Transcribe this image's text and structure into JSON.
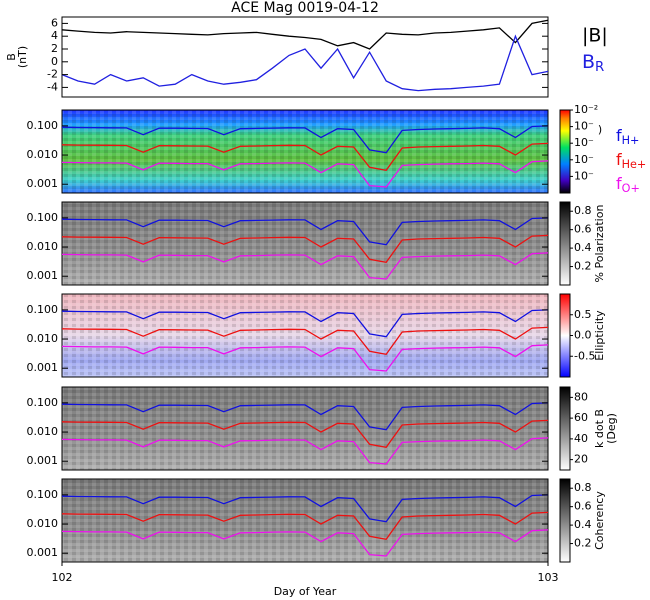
{
  "chart_data": [
    {
      "type": "line",
      "title": "ACE Mag 0019-04-12",
      "ylabel": [
        "B",
        "(nT)"
      ],
      "ylim": [
        -5.5,
        7
      ],
      "yticks": [
        -4,
        -2,
        0,
        2,
        4,
        6
      ],
      "xlim": [
        102,
        103
      ],
      "x": [
        102.0,
        102.033,
        102.067,
        102.1,
        102.133,
        102.167,
        102.2,
        102.233,
        102.267,
        102.3,
        102.333,
        102.367,
        102.4,
        102.433,
        102.467,
        102.5,
        102.533,
        102.567,
        102.6,
        102.633,
        102.667,
        102.7,
        102.733,
        102.767,
        102.8,
        102.833,
        102.867,
        102.9,
        102.933,
        102.967,
        103.0
      ],
      "series": [
        {
          "name": "|B|",
          "color": "#000000",
          "values": [
            5,
            4.8,
            4.6,
            4.5,
            4.7,
            4.6,
            4.5,
            4.4,
            4.3,
            4.2,
            4.4,
            4.5,
            4.6,
            4.3,
            4.0,
            3.8,
            3.5,
            2.5,
            3.0,
            2.0,
            4.5,
            4.3,
            4.2,
            4.5,
            4.6,
            4.8,
            5.0,
            5.3,
            3.0,
            6.0,
            6.5
          ]
        },
        {
          "name": "BR",
          "color": "#2020e0",
          "values": [
            -2,
            -3,
            -3.5,
            -2,
            -3,
            -2.5,
            -3.8,
            -3.5,
            -2,
            -3,
            -3.5,
            -3.2,
            -2.8,
            -1,
            1,
            2,
            -1,
            2,
            -2.5,
            1.5,
            -3,
            -4.2,
            -4.5,
            -4.3,
            -4.2,
            -4.0,
            -3.8,
            -3.5,
            4,
            -2,
            -1.5
          ]
        }
      ]
    },
    {
      "type": "spectrogram",
      "log_y": true,
      "ylim": [
        0.0005,
        0.35
      ],
      "yticks": [
        {
          "value": 0.1,
          "label": "0.100"
        },
        {
          "value": 0.01,
          "label": "0.010"
        },
        {
          "value": 0.001,
          "label": "0.001"
        }
      ],
      "xlim": [
        102,
        103
      ],
      "xticks": [
        102,
        103
      ],
      "xlabel": "Day of Year",
      "x": [
        102.0,
        102.033,
        102.067,
        102.1,
        102.133,
        102.167,
        102.2,
        102.233,
        102.267,
        102.3,
        102.333,
        102.367,
        102.4,
        102.433,
        102.467,
        102.5,
        102.533,
        102.567,
        102.6,
        102.633,
        102.667,
        102.7,
        102.733,
        102.767,
        102.8,
        102.833,
        102.867,
        102.9,
        102.933,
        102.967,
        103.0
      ],
      "series": [
        {
          "name": "fH+",
          "color": "#1010e0",
          "values": [
            0.09,
            0.088,
            0.087,
            0.086,
            0.085,
            0.05,
            0.084,
            0.083,
            0.082,
            0.081,
            0.05,
            0.08,
            0.082,
            0.084,
            0.086,
            0.085,
            0.04,
            0.08,
            0.075,
            0.015,
            0.012,
            0.07,
            0.075,
            0.078,
            0.08,
            0.082,
            0.085,
            0.08,
            0.04,
            0.095,
            0.1
          ]
        },
        {
          "name": "fHe+",
          "color": "#ee1010",
          "values": [
            0.0225,
            0.022,
            0.0218,
            0.0215,
            0.0213,
            0.0125,
            0.021,
            0.0208,
            0.0205,
            0.0203,
            0.0125,
            0.02,
            0.0205,
            0.021,
            0.0215,
            0.0213,
            0.01,
            0.02,
            0.0188,
            0.0038,
            0.003,
            0.0175,
            0.0188,
            0.0195,
            0.02,
            0.0205,
            0.0213,
            0.02,
            0.01,
            0.0238,
            0.025
          ]
        },
        {
          "name": "fO+",
          "color": "#ee10ee",
          "values": [
            0.0056,
            0.0055,
            0.0054,
            0.0054,
            0.0053,
            0.0031,
            0.0053,
            0.0052,
            0.0051,
            0.0051,
            0.0031,
            0.005,
            0.0051,
            0.0053,
            0.0054,
            0.0053,
            0.0025,
            0.005,
            0.0047,
            0.0009,
            0.0008,
            0.0044,
            0.0047,
            0.0049,
            0.005,
            0.0051,
            0.0053,
            0.005,
            0.0025,
            0.0059,
            0.0063
          ]
        }
      ],
      "panels": [
        {
          "colormap": "rainbow",
          "cbar_label": [
            ")"
          ],
          "clim": [
            -7,
            -2
          ],
          "cbar_ticks": [
            {
              "value": -2,
              "label": "10⁻²"
            },
            {
              "value": -3,
              "label": "10⁻"
            },
            {
              "value": -4,
              "label": "10⁻"
            },
            {
              "value": -5,
              "label": "10⁻"
            },
            {
              "value": -6,
              "label": "10⁻"
            }
          ]
        },
        {
          "colormap": "gray",
          "cbar_label": [
            "% Polarization"
          ],
          "clim": [
            0,
            0.9
          ],
          "cbar_ticks": [
            0.2,
            0.4,
            0.6,
            0.8
          ]
        },
        {
          "colormap": "redblue",
          "cbar_label": [
            "Ellipticity"
          ],
          "clim": [
            -1,
            1
          ],
          "cbar_ticks": [
            {
              "value": -0.5,
              "label": "-0.5"
            },
            {
              "value": 0,
              "label": "0.0"
            },
            0.5
          ]
        },
        {
          "colormap": "gray",
          "cbar_label": [
            "k dot B",
            "(Deg)"
          ],
          "clim": [
            10,
            90
          ],
          "cbar_ticks": [
            20,
            40,
            60,
            80
          ]
        },
        {
          "colormap": "gray",
          "cbar_label": [
            "Coherency"
          ],
          "clim": [
            0,
            0.9
          ],
          "cbar_ticks": [
            0.2,
            0.4,
            0.6,
            0.8
          ]
        }
      ]
    }
  ]
}
